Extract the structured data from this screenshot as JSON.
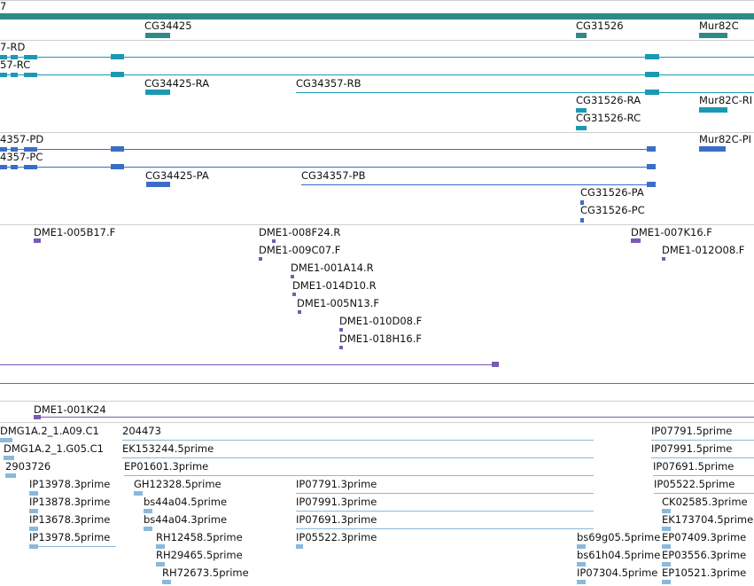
{
  "colors": {
    "gene": "#2f8a87",
    "transcript_teal": "#1b99b3",
    "transcript_blue": "#3a6ec6",
    "clone_purple": "#7a5bb4",
    "est_light": "#8ab9da",
    "separator": "#cfcfcf"
  },
  "gene_track": {
    "header_fragment": "7",
    "labels": [
      "CG34425",
      "CG31526",
      "Mur82C"
    ]
  },
  "transcript_track_1": {
    "labels": [
      "7-RD",
      "57-RC",
      "CG34425-RA",
      "CG34357-RB",
      "CG31526-RA",
      "CG31526-RC",
      "Mur82C-RI"
    ]
  },
  "transcript_track_2": {
    "labels": [
      "4357-PD",
      "4357-PC",
      "CG34425-PA",
      "CG34357-PB",
      "CG31526-PA",
      "CG31526-PC",
      "Mur82C-PI"
    ]
  },
  "clone_track": {
    "labels": [
      "DME1-005B17.F",
      "DME1-008F24.R",
      "DME1-009C07.F",
      "DME1-001A14.R",
      "DME1-014D10.R",
      "DME1-005N13.F",
      "DME1-010D08.F",
      "DME1-018H16.F",
      "DME1-007K16.F",
      "DME1-012O08.F"
    ]
  },
  "clone_track_2": {
    "labels": [
      "DME1-001K24"
    ]
  },
  "est_track": {
    "labels": [
      "DMG1A.2_1.A09.C1",
      "DMG1A.2_1.G05.C1",
      "2903726",
      "IP13978.3prime",
      "IP13878.3prime",
      "IP13678.3prime",
      "IP13978.5prime",
      "204473",
      "EK153244.5prime",
      "EP01601.3prime",
      "GH12328.5prime",
      "bs44a04.5prime",
      "bs44a04.3prime",
      "RH12458.5prime",
      "RH29465.5prime",
      "RH72673.5prime",
      "IP07791.3prime",
      "IP07991.3prime",
      "IP07691.3prime",
      "IP05522.3prime",
      "bs69g05.5prime",
      "bs61h04.5prime",
      "IP07304.5prime",
      "IP07791.5prime",
      "IP07991.5prime",
      "IP07691.5prime",
      "IP05522.5prime",
      "CK02585.3prime",
      "EK173704.5prime",
      "EP07409.3prime",
      "EP03556.3prime",
      "EP10521.3prime"
    ]
  }
}
